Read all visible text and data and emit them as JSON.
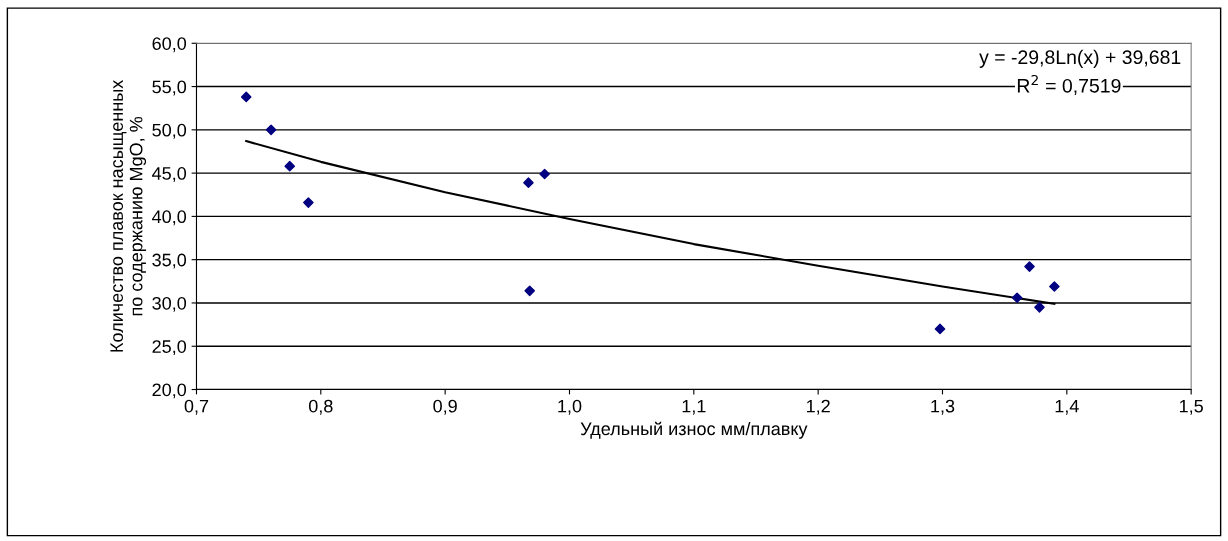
{
  "chart_data": {
    "type": "scatter",
    "xlabel": "Удельный износ мм/плавку",
    "ylabel": "Количество плавок насыщенных\nпо содержанию MgO, %",
    "annotations": [
      "y = -29,8Ln(x) + 39,681",
      "R$^{2}$ = 0,7519"
    ],
    "xlim": [
      0.7,
      1.5
    ],
    "ylim": [
      20,
      60
    ],
    "xticks": [
      {
        "value": 0.7,
        "label": "0,7"
      },
      {
        "value": 0.8,
        "label": "0,8"
      },
      {
        "value": 0.9,
        "label": "0,9"
      },
      {
        "value": 1.0,
        "label": "1,0"
      },
      {
        "value": 1.1,
        "label": "1,1"
      },
      {
        "value": 1.2,
        "label": "1,2"
      },
      {
        "value": 1.3,
        "label": "1,3"
      },
      {
        "value": 1.4,
        "label": "1,4"
      },
      {
        "value": 1.5,
        "label": "1,5"
      }
    ],
    "yticks": [
      {
        "value": 20,
        "label": "20,0"
      },
      {
        "value": 25,
        "label": "25,0"
      },
      {
        "value": 30,
        "label": "30,0"
      },
      {
        "value": 35,
        "label": "35,0"
      },
      {
        "value": 40,
        "label": "40,0"
      },
      {
        "value": 45,
        "label": "45,0"
      },
      {
        "value": 50,
        "label": "50,0"
      },
      {
        "value": 55,
        "label": "55,0"
      },
      {
        "value": 60,
        "label": "60,0"
      }
    ],
    "grid": "y",
    "marker": "diamond",
    "series": [
      {
        "color": "#000080",
        "x": [
          0.74,
          0.76,
          0.775,
          0.79,
          0.967,
          0.98,
          0.968,
          1.298,
          1.37,
          1.36,
          1.378,
          1.39
        ],
        "values": [
          53.8,
          50.0,
          45.8,
          41.6,
          43.9,
          44.9,
          31.4,
          27.0,
          34.2,
          30.6,
          29.5,
          31.9
        ]
      },
      {
        "type": "line",
        "color": "#000000",
        "marker": "none",
        "line_style": "solid",
        "x": [
          0.74,
          0.8,
          0.9,
          1.0,
          1.1,
          1.2,
          1.3,
          1.39
        ],
        "values": [
          48.7,
          46.3,
          42.8,
          39.7,
          36.8,
          34.3,
          31.9,
          29.9
        ]
      }
    ]
  }
}
